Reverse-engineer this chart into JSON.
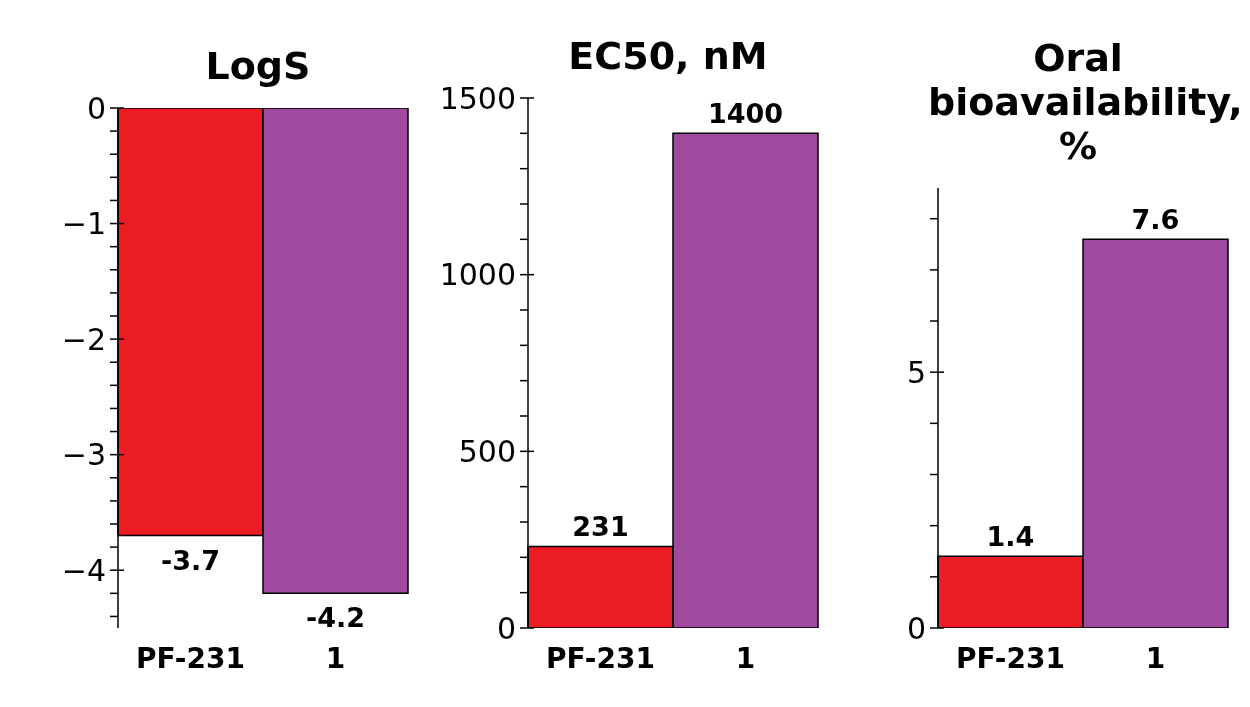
{
  "chart_data": [
    {
      "type": "bar",
      "title": "LogS",
      "categories": [
        "PF-231",
        "1"
      ],
      "values": [
        -3.7,
        -4.2
      ],
      "colors": [
        "#ec1c24",
        "#a04a9f"
      ],
      "data_labels": true,
      "ylim": [
        -4.5,
        0
      ],
      "yticks": [
        0,
        {
          "value": -0.2,
          "label": null
        },
        {
          "value": -0.4,
          "label": null
        },
        {
          "value": -0.6,
          "label": null
        },
        {
          "value": -0.8,
          "label": null
        },
        {
          "value": -1,
          "label": "−1"
        },
        {
          "value": -1.2,
          "label": null
        },
        {
          "value": -1.4,
          "label": null
        },
        {
          "value": -1.6,
          "label": null
        },
        {
          "value": -1.8,
          "label": null
        },
        {
          "value": -2,
          "label": "−2"
        },
        {
          "value": -2.2,
          "label": null
        },
        {
          "value": -2.4,
          "label": null
        },
        {
          "value": -2.6,
          "label": null
        },
        {
          "value": -2.8,
          "label": null
        },
        {
          "value": -3,
          "label": "−3"
        },
        {
          "value": -3.2,
          "label": null
        },
        {
          "value": -3.4,
          "label": null
        },
        {
          "value": -3.6,
          "label": null
        },
        {
          "value": -3.8,
          "label": null
        },
        {
          "value": -4,
          "label": "−4"
        },
        {
          "value": -4.2,
          "label": null
        },
        {
          "value": -4.4,
          "label": null
        }
      ]
    },
    {
      "type": "bar",
      "title": "EC50, nM",
      "categories": [
        "PF-231",
        "1"
      ],
      "values": [
        231,
        1400
      ],
      "colors": [
        "#ec1c24",
        "#a04a9f"
      ],
      "data_labels": true,
      "ylim": [
        0,
        1500
      ],
      "yticks": [
        0,
        {
          "value": 100,
          "label": null
        },
        {
          "value": 200,
          "label": null
        },
        {
          "value": 300,
          "label": null
        },
        {
          "value": 400,
          "label": null
        },
        500,
        {
          "value": 600,
          "label": null
        },
        {
          "value": 700,
          "label": null
        },
        {
          "value": 800,
          "label": null
        },
        {
          "value": 900,
          "label": null
        },
        1000,
        {
          "value": 1100,
          "label": null
        },
        {
          "value": 1200,
          "label": null
        },
        {
          "value": 1300,
          "label": null
        },
        {
          "value": 1400,
          "label": null
        },
        1500
      ]
    },
    {
      "type": "bar",
      "title": "Oral bioavailability, %",
      "categories": [
        "PF-231",
        "1"
      ],
      "values": [
        1.4,
        7.6
      ],
      "colors": [
        "#ec1c24",
        "#a04a9f"
      ],
      "data_labels": true,
      "ylim": [
        0,
        8.6
      ],
      "yticks": [
        0,
        {
          "value": 1,
          "label": null
        },
        {
          "value": 2,
          "label": null
        },
        {
          "value": 3,
          "label": null
        },
        {
          "value": 4,
          "label": null
        },
        5,
        {
          "value": 6,
          "label": null
        },
        {
          "value": 7,
          "label": null
        },
        {
          "value": 8,
          "label": null
        }
      ]
    }
  ]
}
